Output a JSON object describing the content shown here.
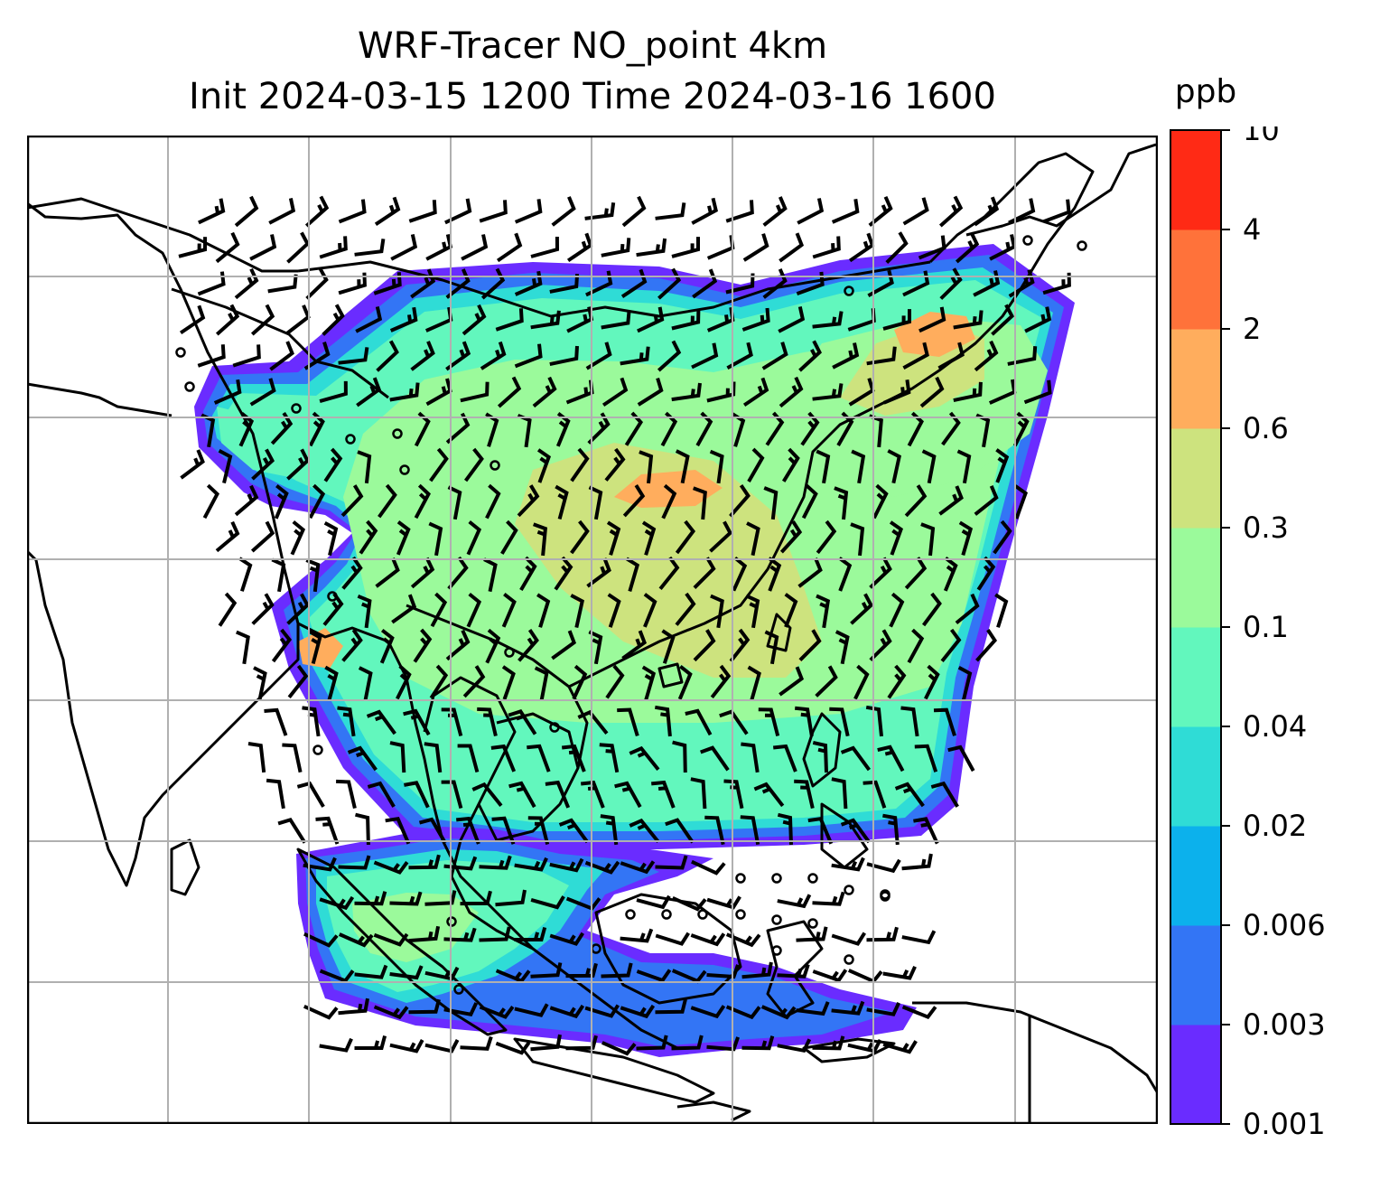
{
  "title_line1": "WRF-Tracer NO_point 4km",
  "title_line2": "Init 2024-03-15 1200 Time 2024-03-16 1600",
  "colorbar": {
    "unit": "ppb",
    "levels": [
      "0.001",
      "0.003",
      "0.006",
      "0.02",
      "0.04",
      "0.1",
      "0.3",
      "0.6",
      "2",
      "4",
      "10"
    ],
    "colors": [
      "#6a2cff",
      "#3375f5",
      "#0cb1ec",
      "#2fdcd6",
      "#62f7bd",
      "#9bfa9b",
      "#cde37e",
      "#ffad5d",
      "#ff723a",
      "#ff2a15"
    ]
  },
  "map": {
    "gridlines": "on",
    "field_colors": {
      "c1": "#6a2cff",
      "c2": "#3375f5",
      "c3": "#2fdcd6",
      "c4": "#62f7bd",
      "c5": "#9bfa9b",
      "c6": "#cde37e",
      "c7": "#ffad5d"
    },
    "coastline_color": "#000000",
    "barb_color": "#000000"
  }
}
